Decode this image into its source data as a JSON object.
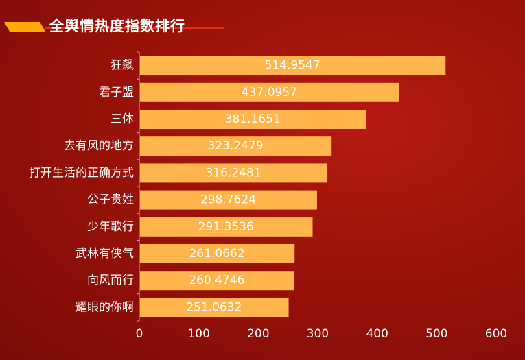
{
  "header": {
    "title": "全舆情热度指数排行"
  },
  "colors": {
    "bar": "#ffb54c",
    "accent": "#ffaa00",
    "background": "#9a1209"
  },
  "chart_data": {
    "type": "bar",
    "orientation": "horizontal",
    "title": "全舆情热度指数排行",
    "categories": [
      "狂飙",
      "君子盟",
      "三体",
      "去有风的地方",
      "打开生活的正确方式",
      "公子贵姓",
      "少年歌行",
      "武林有侠气",
      "向风而行",
      "耀眼的你啊"
    ],
    "values": [
      514.9547,
      437.0957,
      381.1651,
      323.2479,
      316.2481,
      298.7624,
      291.3536,
      261.0662,
      260.4746,
      251.0632
    ],
    "value_labels": [
      "514.9547",
      "437.0957",
      "381.1651",
      "323.2479",
      "316.2481",
      "298.7624",
      "291.3536",
      "261.0662",
      "260.4746",
      "251.0632"
    ],
    "xlim": [
      0,
      600
    ],
    "xticks": [
      0,
      100,
      200,
      300,
      400,
      500,
      600
    ],
    "grid": false,
    "legend": "none"
  }
}
